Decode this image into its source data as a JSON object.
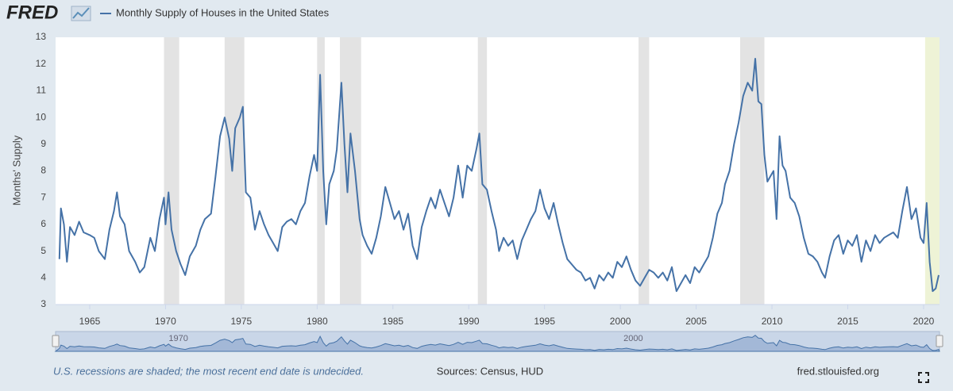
{
  "logo": "FRED",
  "chart_data": {
    "type": "line",
    "ylabel": "Months' Supply",
    "xlim": [
      1962.75,
      2021.05
    ],
    "ylim": [
      3,
      13
    ],
    "xticks": [
      1965,
      1970,
      1975,
      1980,
      1985,
      1990,
      1995,
      2000,
      2005,
      2010,
      2015,
      2020
    ],
    "yticks": [
      3,
      4,
      5,
      6,
      7,
      8,
      9,
      10,
      11,
      12,
      13
    ],
    "grid": false,
    "recession_color": "#e3e3e3",
    "recent_recession_color": "#eef3d6",
    "recessions": [
      [
        1969.9,
        1970.9
      ],
      [
        1973.9,
        1975.2
      ],
      [
        1980.0,
        1980.5
      ],
      [
        1981.5,
        1982.9
      ],
      [
        1990.6,
        1991.2
      ],
      [
        2001.2,
        2001.9
      ],
      [
        2007.9,
        2009.5
      ],
      [
        2020.1,
        2021.05
      ]
    ],
    "x": [
      1963.0,
      1963.1,
      1963.3,
      1963.5,
      1963.7,
      1964.0,
      1964.3,
      1964.6,
      1965.0,
      1965.3,
      1965.6,
      1966.0,
      1966.3,
      1966.6,
      1966.8,
      1967.0,
      1967.3,
      1967.6,
      1968.0,
      1968.3,
      1968.6,
      1969.0,
      1969.3,
      1969.6,
      1969.9,
      1970.0,
      1970.2,
      1970.4,
      1970.7,
      1971.0,
      1971.3,
      1971.6,
      1972.0,
      1972.3,
      1972.6,
      1973.0,
      1973.3,
      1973.6,
      1973.9,
      1974.2,
      1974.4,
      1974.6,
      1974.9,
      1975.1,
      1975.3,
      1975.6,
      1975.9,
      1976.2,
      1976.5,
      1976.8,
      1977.1,
      1977.4,
      1977.7,
      1978.0,
      1978.3,
      1978.6,
      1978.9,
      1979.2,
      1979.5,
      1979.8,
      1980.0,
      1980.2,
      1980.4,
      1980.6,
      1980.8,
      1981.1,
      1981.3,
      1981.6,
      1981.8,
      1982.0,
      1982.2,
      1982.5,
      1982.8,
      1983.0,
      1983.3,
      1983.6,
      1983.9,
      1984.2,
      1984.5,
      1984.8,
      1985.1,
      1985.4,
      1985.7,
      1986.0,
      1986.3,
      1986.6,
      1986.9,
      1987.2,
      1987.5,
      1987.8,
      1988.1,
      1988.4,
      1988.7,
      1989.0,
      1989.3,
      1989.6,
      1989.9,
      1990.2,
      1990.5,
      1990.7,
      1990.9,
      1991.2,
      1991.5,
      1991.8,
      1992.0,
      1992.3,
      1992.6,
      1992.9,
      1993.2,
      1993.5,
      1993.8,
      1994.1,
      1994.4,
      1994.7,
      1995.0,
      1995.3,
      1995.6,
      1995.9,
      1996.2,
      1996.5,
      1996.8,
      1997.1,
      1997.4,
      1997.7,
      1998.0,
      1998.3,
      1998.6,
      1998.9,
      1999.2,
      1999.5,
      1999.8,
      2000.1,
      2000.4,
      2000.7,
      2001.0,
      2001.3,
      2001.6,
      2001.9,
      2002.2,
      2002.5,
      2002.8,
      2003.1,
      2003.4,
      2003.7,
      2004.0,
      2004.3,
      2004.6,
      2004.9,
      2005.2,
      2005.5,
      2005.8,
      2006.1,
      2006.4,
      2006.7,
      2006.9,
      2007.2,
      2007.5,
      2007.8,
      2008.1,
      2008.4,
      2008.7,
      2008.9,
      2009.1,
      2009.3,
      2009.5,
      2009.7,
      2009.9,
      2010.1,
      2010.3,
      2010.5,
      2010.7,
      2010.9,
      2011.2,
      2011.5,
      2011.8,
      2012.1,
      2012.4,
      2012.7,
      2013.0,
      2013.3,
      2013.5,
      2013.8,
      2014.1,
      2014.4,
      2014.7,
      2015.0,
      2015.3,
      2015.6,
      2015.9,
      2016.2,
      2016.5,
      2016.8,
      2017.1,
      2017.4,
      2017.7,
      2018.0,
      2018.3,
      2018.6,
      2018.9,
      2019.2,
      2019.5,
      2019.8,
      2020.0,
      2020.2,
      2020.4,
      2020.6,
      2020.8,
      2021.0
    ],
    "series": [
      {
        "name": "Monthly Supply of Houses in the United States",
        "color": "#4572a7",
        "values": [
          4.7,
          6.6,
          6.0,
          4.6,
          5.9,
          5.6,
          6.1,
          5.7,
          5.6,
          5.5,
          5.0,
          4.7,
          5.8,
          6.5,
          7.2,
          6.3,
          6.0,
          5.0,
          4.6,
          4.2,
          4.4,
          5.5,
          5.0,
          6.2,
          7.0,
          6.0,
          7.2,
          5.8,
          5.0,
          4.5,
          4.1,
          4.8,
          5.2,
          5.8,
          6.2,
          6.4,
          7.8,
          9.3,
          10.0,
          9.2,
          8.0,
          9.6,
          10.0,
          10.4,
          7.2,
          7.0,
          5.8,
          6.5,
          6.0,
          5.6,
          5.3,
          5.0,
          5.9,
          6.1,
          6.2,
          6.0,
          6.5,
          6.8,
          7.8,
          8.6,
          8.0,
          11.6,
          8.0,
          6.0,
          7.5,
          8.0,
          8.8,
          11.3,
          9.0,
          7.2,
          9.4,
          8.0,
          6.2,
          5.6,
          5.2,
          4.9,
          5.5,
          6.3,
          7.4,
          6.8,
          6.2,
          6.5,
          5.8,
          6.4,
          5.2,
          4.7,
          5.9,
          6.5,
          7.0,
          6.6,
          7.3,
          6.8,
          6.3,
          7.0,
          8.2,
          7.0,
          8.2,
          8.0,
          8.8,
          9.4,
          7.5,
          7.3,
          6.5,
          5.8,
          5.0,
          5.5,
          5.2,
          5.4,
          4.7,
          5.4,
          5.8,
          6.2,
          6.5,
          7.3,
          6.6,
          6.2,
          6.8,
          6.0,
          5.3,
          4.7,
          4.5,
          4.3,
          4.2,
          3.9,
          4.0,
          3.6,
          4.1,
          3.9,
          4.2,
          4.0,
          4.6,
          4.4,
          4.8,
          4.3,
          3.9,
          3.7,
          4.0,
          4.3,
          4.2,
          4.0,
          4.2,
          3.9,
          4.4,
          3.5,
          3.8,
          4.1,
          3.8,
          4.4,
          4.2,
          4.5,
          4.8,
          5.5,
          6.4,
          6.8,
          7.5,
          8.0,
          9.0,
          9.8,
          10.8,
          11.3,
          11.0,
          12.2,
          10.6,
          10.5,
          8.6,
          7.6,
          7.8,
          8.0,
          6.2,
          9.3,
          8.2,
          8.0,
          7.0,
          6.8,
          6.3,
          5.5,
          4.9,
          4.8,
          4.6,
          4.2,
          4.0,
          4.8,
          5.4,
          5.6,
          4.9,
          5.4,
          5.2,
          5.6,
          4.6,
          5.4,
          5.0,
          5.6,
          5.3,
          5.5,
          5.6,
          5.7,
          5.5,
          6.5,
          7.4,
          6.2,
          6.6,
          5.5,
          5.3,
          6.8,
          4.6,
          3.5,
          3.6,
          4.1
        ]
      }
    ],
    "navigator_labels": [
      1970,
      2000
    ]
  },
  "footer": {
    "note": "U.S. recessions are shaded; the most recent end date is undecided.",
    "sources": "Sources: Census, HUD",
    "site": "fred.stlouisfed.org"
  }
}
